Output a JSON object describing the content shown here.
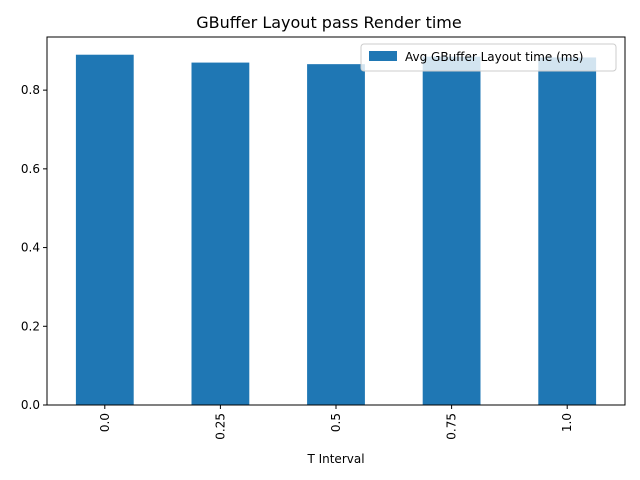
{
  "chart_data": {
    "type": "bar",
    "title": "GBuffer Layout pass Render time",
    "xlabel": "T Interval",
    "ylabel": "",
    "categories": [
      "0.0",
      "0.25",
      "0.5",
      "0.75",
      "1.0"
    ],
    "series": [
      {
        "name": "Avg GBuffer Layout time (ms)",
        "values": [
          0.89,
          0.87,
          0.866,
          0.885,
          0.883
        ],
        "color": "#1f77b4"
      }
    ],
    "ylim": [
      0,
      0.935
    ],
    "yticks": [
      0.0,
      0.2,
      0.4,
      0.6,
      0.8
    ],
    "ytick_labels": [
      "0.0",
      "0.2",
      "0.4",
      "0.6",
      "0.8"
    ],
    "xtick_rotation": 90,
    "grid": false,
    "legend_position": "top-right"
  }
}
